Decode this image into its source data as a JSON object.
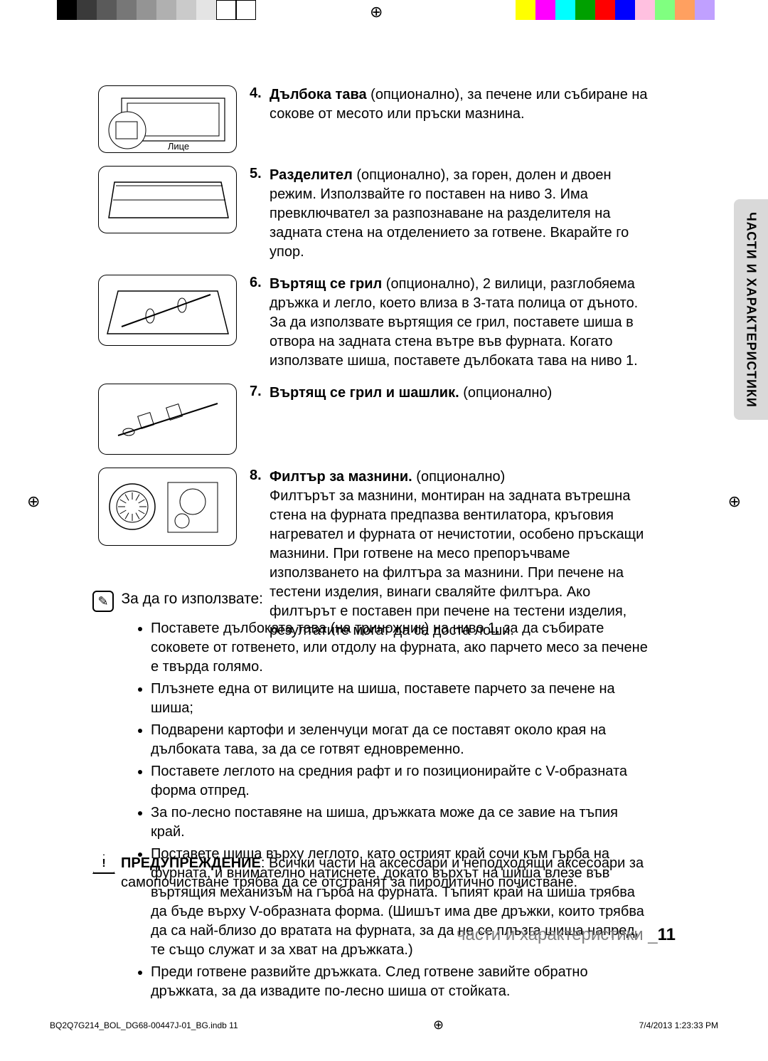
{
  "colorbars": {
    "left": [
      "#000000",
      "#3a3a3a",
      "#5a5a5a",
      "#777777",
      "#949494",
      "#b0b0b0",
      "#cacaca",
      "#e4e4e4",
      "#ffffff",
      "#ffffff"
    ],
    "right": [
      "#ffff00",
      "#ff00ff",
      "#00ffff",
      "#00a000",
      "#ff0000",
      "#0000ff",
      "#ffc0e0",
      "#80ff80",
      "#ffa060",
      "#c0a0ff"
    ]
  },
  "items": [
    {
      "num": "4.",
      "bold": "Дълбока тава",
      "rest": " (опционално), за печене или събиране на сокове от месото или пръски мазнина.",
      "label": "Лице",
      "h": "h95"
    },
    {
      "num": "5.",
      "bold": "Разделител",
      "rest": " (опционално), за горен, долен и двоен режим. Използвайте го поставен на ниво 3. Има превключвател за разпознаване на разделителя на задната стена на отделението за готвене. Вкарайте го упор.",
      "h": "h95"
    },
    {
      "num": "6.",
      "bold": "Въртящ се грил",
      "rest": " (опционално), 2 вилици, разглобяема дръжка и легло, което влиза в 3-тата полица от дъното. За да използвате въртящия се грил, поставете шиша в отвора на задната стена вътре във фурната. Когато използвате шиша, поставете дълбоката тава на ниво 1.",
      "h": "h100"
    },
    {
      "num": "7.",
      "bold": "Въртящ се грил и шашлик.",
      "rest": " (опционално)",
      "h": "h100"
    },
    {
      "num": "8.",
      "bold": "Филтър за мазнини.",
      "rest": " (опционално)\nФилтърът за мазнини, монтиран на задната вътрешна стена на фурната предпазва вентилатора, кръговия нагревател и фурната от нечистотии, особено пръскащи мазнини. При готвене на месо препоръчваме използването на филтъра за мазнини. При печене на тестени изделия, винаги сваляйте филтъра. Ако филтърът е поставен при печене на тестени изделия, резултатите могат да са доста лоши.",
      "h": "h110"
    }
  ],
  "sideTab": "ЧАСТИ И ХАРАКТЕРИСТИКИ",
  "noteIntro": "За да го използвате:",
  "bullets": [
    "Поставете дълбоката тава (на триножник) на ниво 1, за да събирате соковете от готвенето, или отдолу на фурната, ако парчето месо за печене е твърда голямо.",
    "Плъзнете една от вилиците на шиша, поставете парчето за печене на шиша;",
    "Подварени картофи и зеленчуци могат да се поставят около края на дълбоката тава, за да се готвят едновременно.",
    "Поставете леглото на средния рафт и го позиционирайте с V-образната форма отпред.",
    "За по-лесно поставяне на шиша, дръжката може да се завие на тъпия край.",
    "Поставете шиша върху леглото, като острият край сочи към гърба на фурната, и внимателно натиснете, докато върхът на шиша влезе във въртящия механизъм на гърба на фурната. Тъпият край на шиша трябва да бъде върху V-образната форма. (Шишът има две дръжки, които трябва да са най-близо до вратата на фурната, за да не се плъзга шиша напред, те също служат и за хват на дръжката.)",
    "Преди готвене развийте дръжката. След готвене завийте обратно дръжката, за да извадите по-лесно шиша от стойката."
  ],
  "warning": {
    "bold": "ПРЕДУПРЕЖДЕНИЕ",
    "rest": ": Всички части на аксесоари и неподходящи аксесоари за самопочистване трябва да се отстранят за пиролитично почистване."
  },
  "footerTitle": {
    "text": "части и характеристики _",
    "page": "11"
  },
  "printFooter": {
    "file": "BQ2Q7G214_BOL_DG68-00447J-01_BG.indb   11",
    "datetime": "7/4/2013   1:23:33 PM"
  }
}
